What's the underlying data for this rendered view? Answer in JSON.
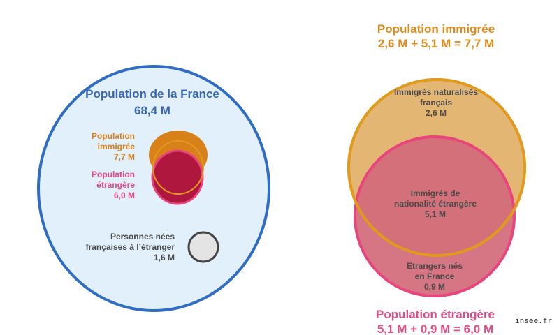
{
  "colors": {
    "france_fill": "#e1f0fb",
    "france_stroke": "#2f6cc4",
    "immigre": "#d8801a",
    "immigre_right_fill": "#e4b673",
    "immigre_right_stroke": "#e09a1d",
    "etrangere": "#b0173f",
    "etrangere_stroke": "#e8457c",
    "etrangere_right_fill": "#d36a7a",
    "expat_fill": "#e4e4e4",
    "expat_stroke": "#444444",
    "title_blue": "#3a67b5",
    "title_orange": "#e08a1c",
    "title_pink": "#e54a86",
    "dark_text": "#4a4a4a"
  },
  "left": {
    "france_title": "Population de la France",
    "france_value": "68,4 M",
    "immigre_label_1": "Population",
    "immigre_label_2": "immigrée",
    "immigre_value": "7,7 M",
    "etrangere_label_1": "Population",
    "etrangere_label_2": "étrangère",
    "etrangere_value": "6,0 M",
    "expat_label_1": "Personnes nées",
    "expat_label_2": "françaises à l’étranger",
    "expat_value": "1,6 M"
  },
  "right": {
    "immigre_title": "Population immigrée",
    "immigre_equation": "2,6 M + 5,1 M = 7,7 M",
    "naturalises_1": "Immigrés naturalisés",
    "naturalises_2": "français",
    "naturalises_value": "2,6 M",
    "overlap_1": "Immigrés de",
    "overlap_2": "nationalité étrangère",
    "overlap_value": "5,1 M",
    "nes_france_1": "Etrangers nés",
    "nes_france_2": "en France",
    "nes_france_value": "0,9 M",
    "etrangere_title": "Population étrangère",
    "etrangere_equation": "5,1 M + 0,9 M = 6,0 M"
  },
  "credit": "insee.fr"
}
